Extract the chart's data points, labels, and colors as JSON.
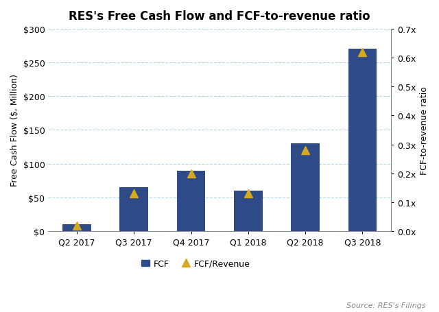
{
  "title": "RES's Free Cash Flow and FCF-to-revenue ratio",
  "categories": [
    "Q2 2017",
    "Q3 2017",
    "Q4 2017",
    "Q1 2018",
    "Q2 2018",
    "Q3 2018"
  ],
  "fcf_values": [
    10,
    65,
    90,
    60,
    130,
    270
  ],
  "fcf_ratio": [
    0.02,
    0.13,
    0.2,
    0.13,
    0.28,
    0.62
  ],
  "bar_color": "#2E4A87",
  "marker_color": "#D4A820",
  "ylabel_left": "Free Cash Flow ($, Million)",
  "ylabel_right": "FCF-to-revenue ratio",
  "ylim_left": [
    0,
    300
  ],
  "ylim_right": [
    0.0,
    0.7
  ],
  "yticks_left": [
    0,
    50,
    100,
    150,
    200,
    250,
    300
  ],
  "yticks_right": [
    0.0,
    0.1,
    0.2,
    0.3,
    0.4,
    0.5,
    0.6,
    0.7
  ],
  "source_text": "Source: RES's Filings",
  "legend_fcf_label": "FCF",
  "legend_ratio_label": "FCF/Revenue",
  "background_color": "#FFFFFF",
  "grid_color": "#ADD8E6",
  "title_fontsize": 12,
  "axis_label_fontsize": 9,
  "tick_fontsize": 9,
  "source_fontsize": 8,
  "legend_fontsize": 9
}
